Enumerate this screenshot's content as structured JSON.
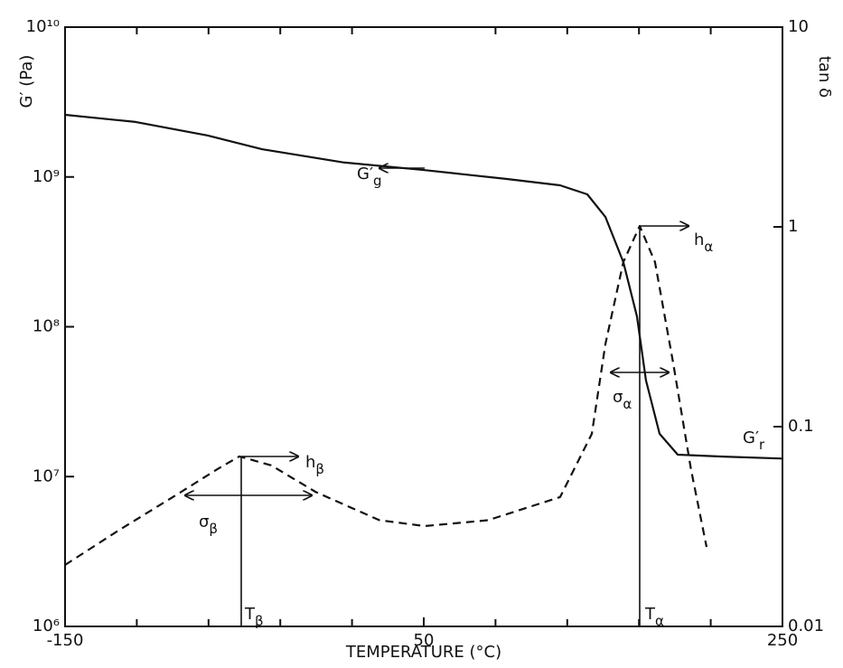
{
  "chart_data": {
    "type": "line",
    "x_label": "TEMPERATURE (°C)",
    "y_label": "G′ (Pa)",
    "y2_label": "tan δ",
    "xlim": [
      -150,
      250
    ],
    "xticks": [
      -150,
      50,
      250
    ],
    "xminorticks": [
      -110,
      -70,
      -30,
      10,
      90,
      130,
      170,
      210
    ],
    "ylim": [
      1000000,
      10000000000
    ],
    "yticks": [
      {
        "value": 1000000,
        "label": "10⁶"
      },
      {
        "value": 10000000,
        "label": "10⁷"
      },
      {
        "value": 100000000,
        "label": "10⁸"
      },
      {
        "value": 1000000000,
        "label": "10⁹"
      },
      {
        "value": 10000000000,
        "label": "10¹⁰"
      }
    ],
    "y2lim": [
      0.01,
      10
    ],
    "y2ticks": [
      0.01,
      0.1,
      1,
      10
    ],
    "ylog": true,
    "y2log": true,
    "series": [
      {
        "color": "#111111",
        "dashed": false,
        "x": [
          -150,
          -110.7,
          -70.4,
          -40.2,
          5.2,
          50.5,
          95.8,
          126,
          141.2,
          151.3,
          161.3,
          168.9,
          173.9,
          181.5,
          191.6,
          216.8,
          250
        ],
        "values": [
          2600000000,
          2330000000,
          1890000000,
          1530000000,
          1250000000,
          1110000000,
          970000000,
          880000000,
          765000000,
          540000000,
          270000000,
          117000000,
          44000000,
          19300000,
          14000000,
          13600000,
          13200000
        ]
      },
      {
        "color": "#111111",
        "dashed": true,
        "axis": "y2",
        "x": [
          -150,
          -120.8,
          -85.5,
          -65.4,
          -52.8,
          -35.1,
          -10,
          25.3,
          50.5,
          85.8,
          126,
          143.7,
          151.3,
          161.3,
          170.4,
          178.9,
          189,
          199,
          207.7
        ],
        "values": [
          0.0203,
          0.03,
          0.047,
          0.061,
          0.071,
          0.064,
          0.047,
          0.034,
          0.0318,
          0.034,
          0.0444,
          0.092,
          0.26,
          0.667,
          1.01,
          0.667,
          0.21,
          0.061,
          0.025
        ]
      }
    ],
    "annotations": [
      {
        "text": "G′",
        "sub": "g"
      },
      {
        "text": "h",
        "sub": "β"
      },
      {
        "text": "σ",
        "sub": "β"
      },
      {
        "text": "T",
        "sub": "β"
      },
      {
        "text": "h",
        "sub": "α"
      },
      {
        "text": "σ",
        "sub": "α"
      },
      {
        "text": "T",
        "sub": "α"
      },
      {
        "text": "G′",
        "sub": "r"
      }
    ]
  }
}
